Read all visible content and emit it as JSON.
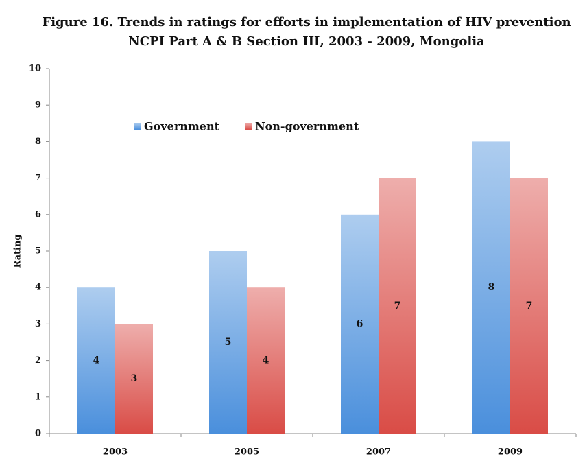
{
  "chart_data": {
    "type": "bar",
    "title": [
      "Figure 16. Trends in ratings for efforts in implementation of HIV prevention",
      "NCPI Part A & B Section III, 2003 - 2009, Mongolia"
    ],
    "y_label": "Rating",
    "categories": [
      "2003",
      "2005",
      "2007",
      "2009"
    ],
    "series": [
      {
        "name": "Government",
        "color": "#4a8fdc",
        "values": [
          4,
          5,
          6,
          8
        ]
      },
      {
        "name": "Non-government",
        "color": "#d94c46",
        "values": [
          3,
          4,
          7,
          7
        ]
      }
    ],
    "ylim": [
      0,
      10
    ],
    "yticks": [
      0,
      1,
      2,
      3,
      4,
      5,
      6,
      7,
      8,
      9,
      10
    ],
    "grid": false,
    "legend": "top"
  }
}
